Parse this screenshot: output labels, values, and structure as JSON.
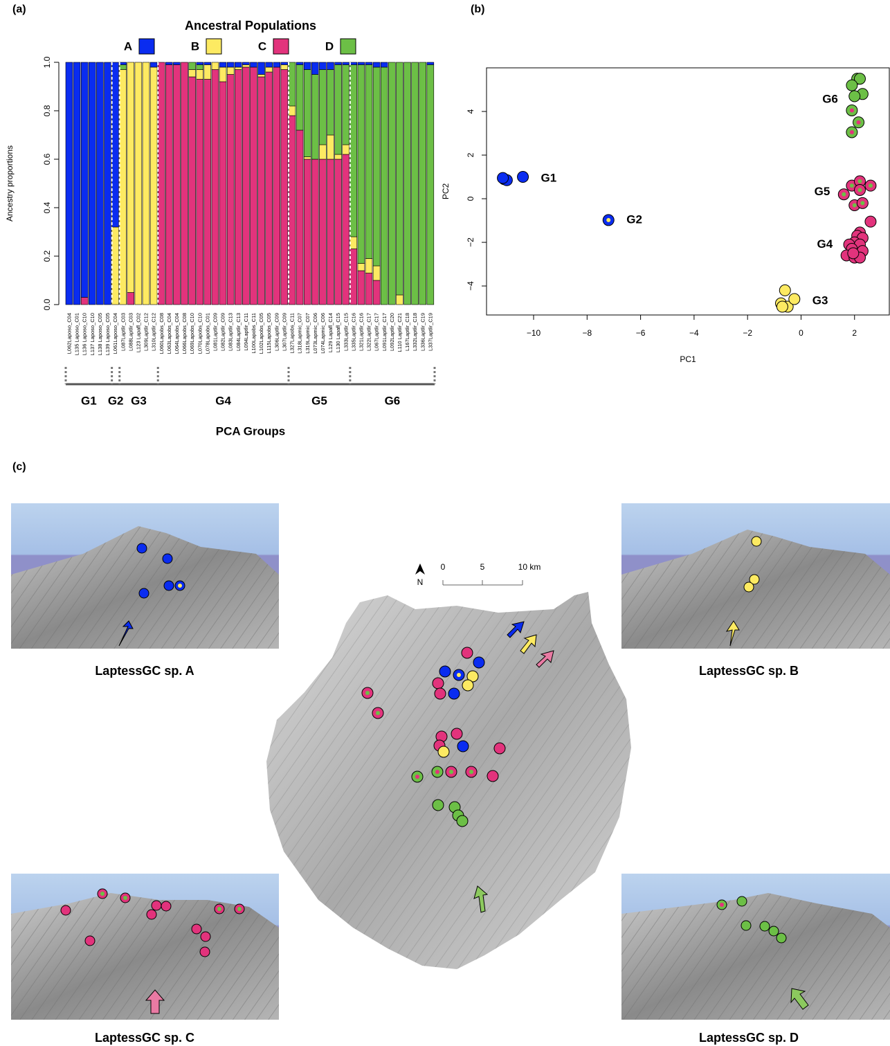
{
  "chart_data": [
    {
      "type": "stacked_bar",
      "panel_label": "(a)",
      "title": "Ancestral Populations",
      "ylabel": "Ancestry proportions",
      "xlabel": "PCA Groups",
      "categories": [
        "L062Laposo_C04",
        "L135 Laposo_C01",
        "L136 Laposo_C10",
        "L137 Laposo_C10",
        "L138 Laposo_C05",
        "L139 Laposo_C05",
        "L061Laposo_C04",
        "L087Laptlir_C03",
        "L088Laptlir_C03",
        "L123 Lapafl_C02",
        "L309Laptlir_C12",
        "L310Laptlir_C12",
        "L060Lapobs_C08",
        "L063Lapobs_C04",
        "L064Lapobs_C04",
        "L066Lapobs_C08",
        "L069Lapobs_C10",
        "L070Lapobs_C10",
        "L078Lapobs_C01",
        "L081Laptlir_C09",
        "L082Laptlir_C09",
        "L083Laptlir_C13",
        "L084Laptlir_C13",
        "L094Laptlir_C11",
        "L100Lapobs_C11",
        "L102Lapobs_C05",
        "L115Lapobs_C05",
        "L306Laptlir_C09",
        "L307Laptlir_C09",
        "L327Lapobs_C11",
        "L318Lapmic_C07",
        "L319Lapmic_C07",
        "L073Lapmic_C06",
        "L074Lapmic_C06",
        "L129 Lapafl_C14",
        "L130 Lapafl_C15",
        "L333Laptlir_C15",
        "L335Laptlir_C16",
        "L321Laptlir_C16",
        "L322Laptlir_C17",
        "L067Laptlir_C17",
        "L091Laptlir_C17",
        "L092Laptlir_C20",
        "L110 Laptlir_C21",
        "L167Laptlir_C18",
        "L332Laptlir_C18",
        "L336Laptlir_C19",
        "L337Laptlir_C19"
      ],
      "series": [
        {
          "name": "A",
          "color": "#0a2cf0",
          "values": [
            1,
            1,
            0.97,
            1,
            1,
            1,
            0.68,
            0.01,
            0,
            0,
            0,
            0.02,
            0,
            0.01,
            0.01,
            0,
            0,
            0.01,
            0.01,
            0,
            0.02,
            0.02,
            0.02,
            0.01,
            0.02,
            0.05,
            0.02,
            0.02,
            0.01,
            0,
            0.01,
            0.03,
            0.05,
            0.03,
            0.03,
            0.01,
            0.01,
            0.01,
            0.01,
            0.01,
            0.02,
            0.02,
            0,
            0,
            0,
            0,
            0,
            0.01
          ]
        },
        {
          "name": "B",
          "color": "#fdea62",
          "values": [
            0,
            0,
            0,
            0,
            0,
            0,
            0.32,
            0.97,
            0.95,
            1,
            1,
            0.98,
            0,
            0,
            0,
            0,
            0.03,
            0.04,
            0.06,
            0.03,
            0.06,
            0.03,
            0.01,
            0.01,
            0,
            0.01,
            0.02,
            0,
            0.02,
            0.04,
            0,
            0.01,
            0,
            0.06,
            0.1,
            0.02,
            0.04,
            0.05,
            0.03,
            0.06,
            0.06,
            0,
            0,
            0.04,
            0,
            0,
            0,
            0
          ]
        },
        {
          "name": "C",
          "color": "#e2337c",
          "values": [
            0,
            0,
            0.03,
            0,
            0,
            0,
            0,
            0,
            0.05,
            0,
            0,
            0,
            1,
            0.99,
            0.99,
            1,
            0.94,
            0.93,
            0.93,
            0.97,
            0.92,
            0.95,
            0.97,
            0.98,
            0.98,
            0.94,
            0.96,
            0.98,
            0.97,
            0.78,
            0.72,
            0.6,
            0.6,
            0.6,
            0.6,
            0.6,
            0.62,
            0.23,
            0.14,
            0.13,
            0.1,
            0,
            0,
            0,
            0,
            0,
            0,
            0
          ]
        },
        {
          "name": "D",
          "color": "#6cbf46",
          "values": [
            0,
            0,
            0,
            0,
            0,
            0,
            0,
            0.02,
            0,
            0,
            0,
            0,
            0,
            0,
            0,
            0,
            0.03,
            0.02,
            0,
            0,
            0,
            0,
            0,
            0,
            0,
            0,
            0,
            0,
            0,
            0.18,
            0.27,
            0.36,
            0.35,
            0.31,
            0.27,
            0.37,
            0.33,
            0.71,
            0.82,
            0.8,
            0.82,
            0.98,
            1,
            0.96,
            1,
            1,
            1,
            0.99
          ]
        }
      ],
      "ylim": [
        0,
        1
      ],
      "yticks": [
        {
          "value": 0,
          "label": "0.0"
        },
        {
          "value": 0.2,
          "label": "0.2"
        },
        {
          "value": 0.4,
          "label": "0.4"
        },
        {
          "value": 0.6,
          "label": "0.6"
        },
        {
          "value": 0.8,
          "label": "0.8"
        },
        {
          "value": 1,
          "label": "1.0"
        }
      ],
      "groups": [
        {
          "name": "G1",
          "count": 6
        },
        {
          "name": "G2",
          "count": 1
        },
        {
          "name": "G3",
          "count": 5
        },
        {
          "name": "G4",
          "count": 17
        },
        {
          "name": "G5",
          "count": 8
        },
        {
          "name": "G6",
          "count": 11
        }
      ]
    },
    {
      "type": "scatter",
      "panel_label": "(b)",
      "xlabel": "PC1",
      "ylabel": "PC2",
      "xlim": [
        -11.76,
        3.3
      ],
      "ylim": [
        -5.33,
        6.0
      ],
      "xticks": [
        {
          "value": -10,
          "label": "−10"
        },
        {
          "value": -8,
          "label": "−8"
        },
        {
          "value": -6,
          "label": "−6"
        },
        {
          "value": -4,
          "label": "−4"
        },
        {
          "value": -2,
          "label": "−2"
        },
        0,
        2
      ],
      "yticks": [
        {
          "value": -4,
          "label": "−4"
        },
        {
          "value": -2,
          "label": "−2"
        },
        0,
        2,
        4
      ],
      "series": [
        {
          "name": "G1",
          "color": "#0a2cf0",
          "x": [
            -11.1,
            -11.0,
            -11.15,
            -10.4
          ],
          "values": [
            0.9,
            0.85,
            0.95,
            1.0
          ]
        },
        {
          "name": "G2",
          "color": "#0a2cf0",
          "center_colors": [
            "#fdea62"
          ],
          "x": [
            -7.2
          ],
          "values": [
            -0.98
          ]
        },
        {
          "name": "G3",
          "color": "#fdea62",
          "x": [
            -0.6,
            -0.75,
            -0.5,
            -0.25,
            -0.7
          ],
          "values": [
            -4.2,
            -4.8,
            -4.95,
            -4.6,
            -4.95
          ]
        },
        {
          "name": "G4",
          "color": "#e2337c",
          "x": [
            2.6,
            2.2,
            2.1,
            2.3,
            2.0,
            1.8,
            2.2,
            1.9,
            2.3,
            1.7,
            2.0,
            2.2,
            1.95
          ],
          "values": [
            -1.05,
            -1.55,
            -1.7,
            -1.8,
            -2.0,
            -2.1,
            -2.1,
            -2.3,
            -2.4,
            -2.6,
            -2.7,
            -2.7,
            -2.5
          ]
        },
        {
          "name": "G5",
          "color": "#e2337c",
          "center_colors": [
            "#6cbf46",
            "#6cbf46",
            "#6cbf46",
            "#6cbf46",
            "#6cbf46",
            "#6cbf46",
            "#6cbf46"
          ],
          "x": [
            1.6,
            1.9,
            2.2,
            2.2,
            2.0,
            2.3,
            2.6
          ],
          "values": [
            0.2,
            0.6,
            0.8,
            0.4,
            -0.3,
            -0.2,
            0.6
          ]
        },
        {
          "name": "G6",
          "color": "#6cbf46",
          "center_colors": [
            null,
            null,
            null,
            null,
            null,
            "#e2337c",
            "#e2337c",
            "#e2337c"
          ],
          "x": [
            2.1,
            2.2,
            1.9,
            2.3,
            2.0,
            1.9,
            2.15,
            1.9
          ],
          "values": [
            5.5,
            5.5,
            5.2,
            4.8,
            4.7,
            4.05,
            3.5,
            3.05
          ]
        }
      ]
    }
  ],
  "map": {
    "panel_label": "(c)",
    "north": "N",
    "scale_labels": [
      "0",
      "5",
      "10 km"
    ],
    "panels": [
      {
        "title": "LaptessGC sp. A"
      },
      {
        "title": "LaptessGC sp. B"
      },
      {
        "title": "LaptessGC sp. C"
      },
      {
        "title": "LaptessGC sp. D"
      }
    ]
  }
}
